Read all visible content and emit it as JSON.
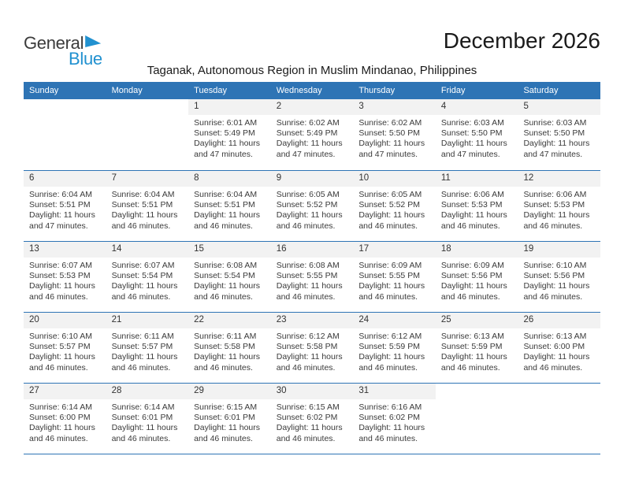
{
  "header": {
    "logo_part1": "General",
    "logo_part2": "Blue",
    "title": "December 2026",
    "subtitle": "Taganak, Autonomous Region in Muslim Mindanao, Philippines"
  },
  "colors": {
    "header_blue": "#2E74B5",
    "logo_blue": "#2191D0",
    "day_band_gray": "#F2F2F2",
    "detail_text": "#3A3A3A"
  },
  "calendar": {
    "weekdays": [
      "Sunday",
      "Monday",
      "Tuesday",
      "Wednesday",
      "Thursday",
      "Friday",
      "Saturday"
    ],
    "weeks": [
      [
        null,
        null,
        {
          "day": "1",
          "lines": [
            "Sunrise: 6:01 AM",
            "Sunset: 5:49 PM",
            "Daylight: 11 hours",
            "and 47 minutes."
          ]
        },
        {
          "day": "2",
          "lines": [
            "Sunrise: 6:02 AM",
            "Sunset: 5:49 PM",
            "Daylight: 11 hours",
            "and 47 minutes."
          ]
        },
        {
          "day": "3",
          "lines": [
            "Sunrise: 6:02 AM",
            "Sunset: 5:50 PM",
            "Daylight: 11 hours",
            "and 47 minutes."
          ]
        },
        {
          "day": "4",
          "lines": [
            "Sunrise: 6:03 AM",
            "Sunset: 5:50 PM",
            "Daylight: 11 hours",
            "and 47 minutes."
          ]
        },
        {
          "day": "5",
          "lines": [
            "Sunrise: 6:03 AM",
            "Sunset: 5:50 PM",
            "Daylight: 11 hours",
            "and 47 minutes."
          ]
        }
      ],
      [
        {
          "day": "6",
          "lines": [
            "Sunrise: 6:04 AM",
            "Sunset: 5:51 PM",
            "Daylight: 11 hours",
            "and 47 minutes."
          ]
        },
        {
          "day": "7",
          "lines": [
            "Sunrise: 6:04 AM",
            "Sunset: 5:51 PM",
            "Daylight: 11 hours",
            "and 46 minutes."
          ]
        },
        {
          "day": "8",
          "lines": [
            "Sunrise: 6:04 AM",
            "Sunset: 5:51 PM",
            "Daylight: 11 hours",
            "and 46 minutes."
          ]
        },
        {
          "day": "9",
          "lines": [
            "Sunrise: 6:05 AM",
            "Sunset: 5:52 PM",
            "Daylight: 11 hours",
            "and 46 minutes."
          ]
        },
        {
          "day": "10",
          "lines": [
            "Sunrise: 6:05 AM",
            "Sunset: 5:52 PM",
            "Daylight: 11 hours",
            "and 46 minutes."
          ]
        },
        {
          "day": "11",
          "lines": [
            "Sunrise: 6:06 AM",
            "Sunset: 5:53 PM",
            "Daylight: 11 hours",
            "and 46 minutes."
          ]
        },
        {
          "day": "12",
          "lines": [
            "Sunrise: 6:06 AM",
            "Sunset: 5:53 PM",
            "Daylight: 11 hours",
            "and 46 minutes."
          ]
        }
      ],
      [
        {
          "day": "13",
          "lines": [
            "Sunrise: 6:07 AM",
            "Sunset: 5:53 PM",
            "Daylight: 11 hours",
            "and 46 minutes."
          ]
        },
        {
          "day": "14",
          "lines": [
            "Sunrise: 6:07 AM",
            "Sunset: 5:54 PM",
            "Daylight: 11 hours",
            "and 46 minutes."
          ]
        },
        {
          "day": "15",
          "lines": [
            "Sunrise: 6:08 AM",
            "Sunset: 5:54 PM",
            "Daylight: 11 hours",
            "and 46 minutes."
          ]
        },
        {
          "day": "16",
          "lines": [
            "Sunrise: 6:08 AM",
            "Sunset: 5:55 PM",
            "Daylight: 11 hours",
            "and 46 minutes."
          ]
        },
        {
          "day": "17",
          "lines": [
            "Sunrise: 6:09 AM",
            "Sunset: 5:55 PM",
            "Daylight: 11 hours",
            "and 46 minutes."
          ]
        },
        {
          "day": "18",
          "lines": [
            "Sunrise: 6:09 AM",
            "Sunset: 5:56 PM",
            "Daylight: 11 hours",
            "and 46 minutes."
          ]
        },
        {
          "day": "19",
          "lines": [
            "Sunrise: 6:10 AM",
            "Sunset: 5:56 PM",
            "Daylight: 11 hours",
            "and 46 minutes."
          ]
        }
      ],
      [
        {
          "day": "20",
          "lines": [
            "Sunrise: 6:10 AM",
            "Sunset: 5:57 PM",
            "Daylight: 11 hours",
            "and 46 minutes."
          ]
        },
        {
          "day": "21",
          "lines": [
            "Sunrise: 6:11 AM",
            "Sunset: 5:57 PM",
            "Daylight: 11 hours",
            "and 46 minutes."
          ]
        },
        {
          "day": "22",
          "lines": [
            "Sunrise: 6:11 AM",
            "Sunset: 5:58 PM",
            "Daylight: 11 hours",
            "and 46 minutes."
          ]
        },
        {
          "day": "23",
          "lines": [
            "Sunrise: 6:12 AM",
            "Sunset: 5:58 PM",
            "Daylight: 11 hours",
            "and 46 minutes."
          ]
        },
        {
          "day": "24",
          "lines": [
            "Sunrise: 6:12 AM",
            "Sunset: 5:59 PM",
            "Daylight: 11 hours",
            "and 46 minutes."
          ]
        },
        {
          "day": "25",
          "lines": [
            "Sunrise: 6:13 AM",
            "Sunset: 5:59 PM",
            "Daylight: 11 hours",
            "and 46 minutes."
          ]
        },
        {
          "day": "26",
          "lines": [
            "Sunrise: 6:13 AM",
            "Sunset: 6:00 PM",
            "Daylight: 11 hours",
            "and 46 minutes."
          ]
        }
      ],
      [
        {
          "day": "27",
          "lines": [
            "Sunrise: 6:14 AM",
            "Sunset: 6:00 PM",
            "Daylight: 11 hours",
            "and 46 minutes."
          ]
        },
        {
          "day": "28",
          "lines": [
            "Sunrise: 6:14 AM",
            "Sunset: 6:01 PM",
            "Daylight: 11 hours",
            "and 46 minutes."
          ]
        },
        {
          "day": "29",
          "lines": [
            "Sunrise: 6:15 AM",
            "Sunset: 6:01 PM",
            "Daylight: 11 hours",
            "and 46 minutes."
          ]
        },
        {
          "day": "30",
          "lines": [
            "Sunrise: 6:15 AM",
            "Sunset: 6:02 PM",
            "Daylight: 11 hours",
            "and 46 minutes."
          ]
        },
        {
          "day": "31",
          "lines": [
            "Sunrise: 6:16 AM",
            "Sunset: 6:02 PM",
            "Daylight: 11 hours",
            "and 46 minutes."
          ]
        },
        null,
        null
      ]
    ]
  }
}
